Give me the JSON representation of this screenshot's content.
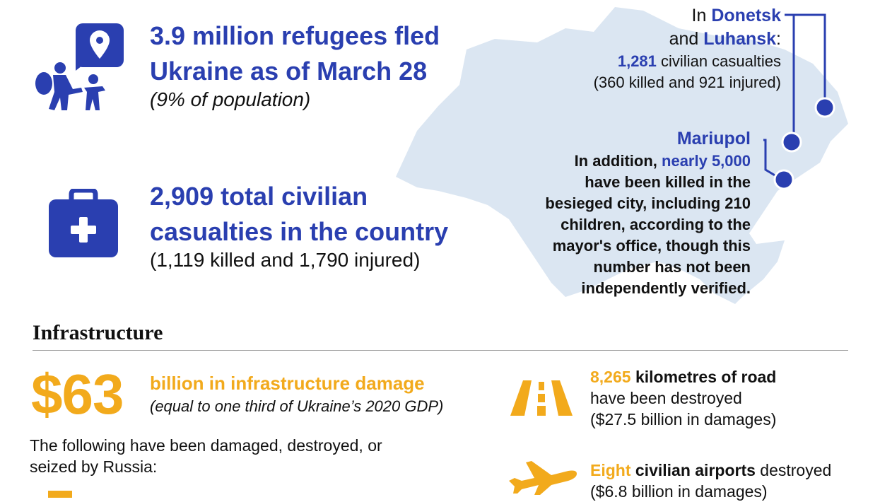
{
  "colors": {
    "accent": "#2a3fb0",
    "gold": "#f2aa1c",
    "map": "#dbe6f2"
  },
  "refugees": {
    "icon": "refugee-icon",
    "headline_1": "3.9 million refugees fled",
    "headline_2": "Ukraine as of March 28",
    "sub": "(9% of population)"
  },
  "casualties": {
    "icon": "medical-kit-icon",
    "headline_1": "2,909 total civilian",
    "headline_2": "casualties in the country",
    "sub": "(1,119 killed and 1,790 injured)"
  },
  "donetsk": {
    "pre": "In",
    "name1": "Donetsk",
    "and": "and",
    "name2": "Luhansk",
    "colon": ":",
    "count": "1,281",
    "count_suffix": "civilian casualties",
    "detail": "(360 killed and 921 injured)"
  },
  "mariupol": {
    "title": "Mariupol",
    "lead": "In addition,",
    "highlight": "nearly 5,000",
    "lines": [
      "have been killed in the",
      "besieged city, including 210",
      "children, according to the",
      "mayor's office, though this",
      "number has not been",
      "independently verified."
    ]
  },
  "infrastructure": {
    "heading": "Infrastructure",
    "big_number": "$63",
    "damage_label": "billion in infrastructure damage",
    "damage_note": "(equal to one third of Ukraine’s 2020 GDP)",
    "intro_1": "The following have been damaged, destroyed, or",
    "intro_2": "seized by Russia:",
    "road": {
      "icon": "road-icon",
      "value": "8,265",
      "label": "kilometres of road",
      "line2": "have been destroyed",
      "line3": "($27.5 billion in damages)"
    },
    "airports": {
      "icon": "airplane-icon",
      "value": "Eight",
      "label": "civilian airports",
      "suffix": "destroyed",
      "line2": "($6.8 billion in damages)"
    }
  }
}
